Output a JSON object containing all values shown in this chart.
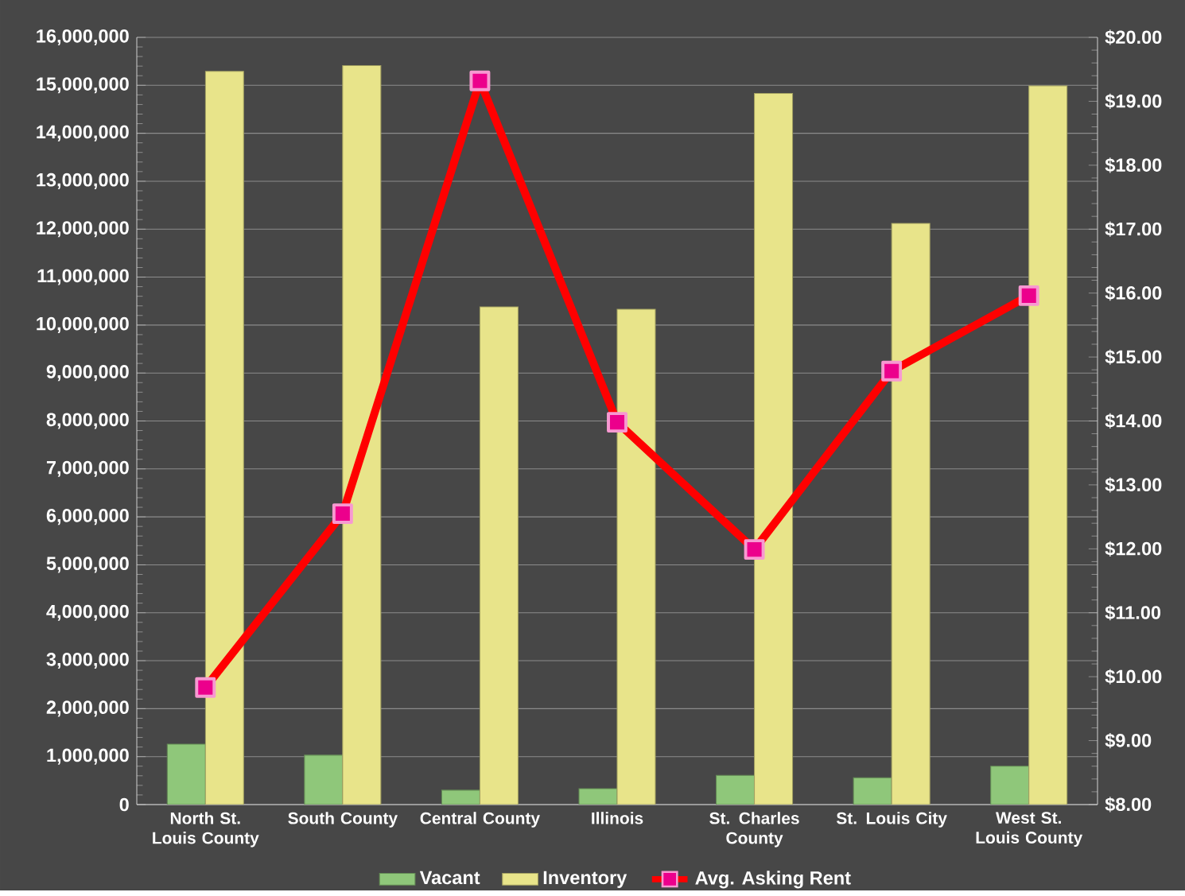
{
  "chart_data": {
    "type": "bar",
    "categories": [
      "North St. Louis County",
      "South County",
      "Central County",
      "Illinois",
      "St. Charles County",
      "St. Louis City",
      "West St. Louis County"
    ],
    "series": [
      {
        "name": "Vacant",
        "color": "#8fc77a",
        "values": [
          1260000,
          1030000,
          300000,
          330000,
          610000,
          560000,
          800000
        ]
      },
      {
        "name": "Inventory",
        "color": "#e8e48a",
        "values": [
          15290000,
          15410000,
          10380000,
          10330000,
          14830000,
          12120000,
          14990000
        ]
      },
      {
        "name": "Avg. Asking Rent",
        "type": "line",
        "axis": "y2",
        "color": "#ff0000",
        "marker": "square",
        "values": [
          9.83,
          12.55,
          19.32,
          13.98,
          11.99,
          14.78,
          15.96
        ]
      }
    ],
    "ylim": [
      0,
      16000000
    ],
    "yticks": [
      {
        "value": 0,
        "label": "0"
      },
      {
        "value": 1000000,
        "label": "1,000,000"
      },
      {
        "value": 2000000,
        "label": "2,000,000"
      },
      {
        "value": 3000000,
        "label": "3,000,000"
      },
      {
        "value": 4000000,
        "label": "4,000,000"
      },
      {
        "value": 5000000,
        "label": "5,000,000"
      },
      {
        "value": 6000000,
        "label": "6,000,000"
      },
      {
        "value": 7000000,
        "label": "7,000,000"
      },
      {
        "value": 8000000,
        "label": "8,000,000"
      },
      {
        "value": 9000000,
        "label": "9,000,000"
      },
      {
        "value": 10000000,
        "label": "10,000,000"
      },
      {
        "value": 11000000,
        "label": "11,000,000"
      },
      {
        "value": 12000000,
        "label": "12,000,000"
      },
      {
        "value": 13000000,
        "label": "13,000,000"
      },
      {
        "value": 14000000,
        "label": "14,000,000"
      },
      {
        "value": 15000000,
        "label": "15,000,000"
      },
      {
        "value": 16000000,
        "label": "16,000,000"
      }
    ],
    "y2lim": [
      8,
      20
    ],
    "y2ticks": [
      {
        "value": 8,
        "label": "$8.00"
      },
      {
        "value": 9,
        "label": "$9.00"
      },
      {
        "value": 10,
        "label": "$10.00"
      },
      {
        "value": 11,
        "label": "$11.00"
      },
      {
        "value": 12,
        "label": "$12.00"
      },
      {
        "value": 13,
        "label": "$13.00"
      },
      {
        "value": 14,
        "label": "$14.00"
      },
      {
        "value": 15,
        "label": "$15.00"
      },
      {
        "value": 16,
        "label": "$16.00"
      },
      {
        "value": 17,
        "label": "$17.00"
      },
      {
        "value": 18,
        "label": "$18.00"
      },
      {
        "value": 19,
        "label": "$19.00"
      },
      {
        "value": 20,
        "label": "$20.00"
      }
    ],
    "grid": "y",
    "legend": "bottom"
  }
}
